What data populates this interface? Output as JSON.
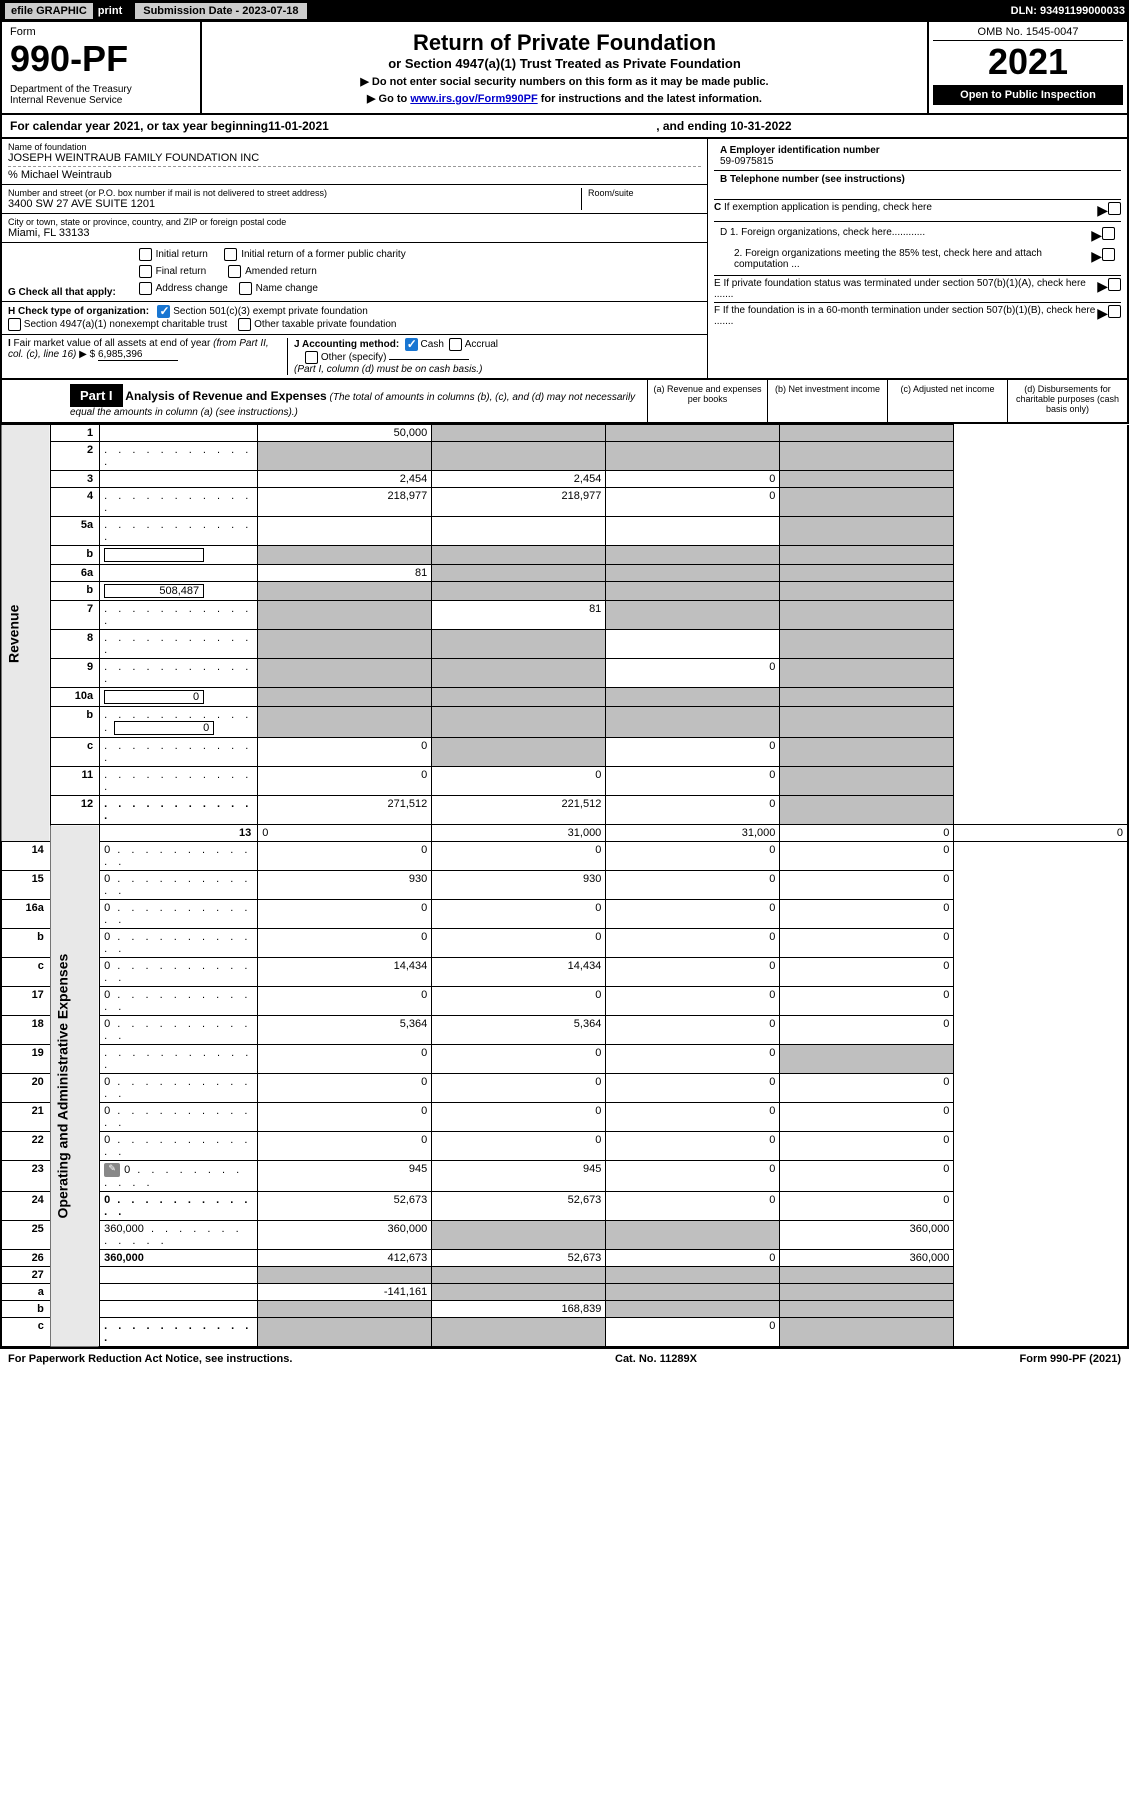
{
  "topbar": {
    "efile": "efile GRAPHIC",
    "print": "print",
    "subdate_label": "Submission Date - 2023-07-18",
    "dln": "DLN: 93491199000033"
  },
  "header": {
    "form": "Form",
    "formno": "990-PF",
    "dept": "Department of the Treasury\nInternal Revenue Service",
    "title": "Return of Private Foundation",
    "subtitle": "or Section 4947(a)(1) Trust Treated as Private Foundation",
    "note1": "▶ Do not enter social security numbers on this form as it may be made public.",
    "note2_pre": "▶ Go to ",
    "note2_link": "www.irs.gov/Form990PF",
    "note2_post": " for instructions and the latest information.",
    "omb": "OMB No. 1545-0047",
    "year": "2021",
    "open": "Open to Public Inspection"
  },
  "cal": {
    "pre": "For calendar year 2021, or tax year beginning ",
    "begin": "11-01-2021",
    "mid": ", and ending ",
    "end": "10-31-2022"
  },
  "info": {
    "name_label": "Name of foundation",
    "name": "JOSEPH WEINTRAUB FAMILY FOUNDATION INC",
    "care": "% Michael Weintraub",
    "addr_label": "Number and street (or P.O. box number if mail is not delivered to street address)",
    "addr": "3400 SW 27 AVE SUITE 1201",
    "room_label": "Room/suite",
    "city_label": "City or town, state or province, country, and ZIP or foreign postal code",
    "city": "Miami, FL  33133",
    "ein_label": "A Employer identification number",
    "ein": "59-0975815",
    "tel_label": "B Telephone number (see instructions)",
    "c_label": "C If exemption application is pending, check here",
    "d1": "D 1. Foreign organizations, check here............",
    "d2": "2. Foreign organizations meeting the 85% test, check here and attach computation ...",
    "e": "E  If private foundation status was terminated under section 507(b)(1)(A), check here .......",
    "f": "F  If the foundation is in a 60-month termination under section 507(b)(1)(B), check here .......",
    "g_label": "G Check all that apply:",
    "g_opts": [
      "Initial return",
      "Initial return of a former public charity",
      "Final return",
      "Amended return",
      "Address change",
      "Name change"
    ],
    "h_label": "H Check type of organization:",
    "h_opts": [
      "Section 501(c)(3) exempt private foundation",
      "Section 4947(a)(1) nonexempt charitable trust",
      "Other taxable private foundation"
    ],
    "i_label": "I Fair market value of all assets at end of year (from Part II, col. (c), line 16) ▶ $",
    "i_val": "6,985,396",
    "j_label": "J Accounting method:",
    "j_opts": [
      "Cash",
      "Accrual",
      "Other (specify)"
    ],
    "j_note": "(Part I, column (d) must be on cash basis.)"
  },
  "part1": {
    "hdr": "Part I",
    "title": "Analysis of Revenue and Expenses",
    "title_note": "(The total of amounts in columns (b), (c), and (d) may not necessarily equal the amounts in column (a) (see instructions).)",
    "cols": {
      "a": "(a) Revenue and expenses per books",
      "b": "(b) Net investment income",
      "c": "(c) Adjusted net income",
      "d": "(d) Disbursements for charitable purposes (cash basis only)"
    }
  },
  "sides": {
    "rev": "Revenue",
    "exp": "Operating and Administrative Expenses"
  },
  "rows": [
    {
      "n": "1",
      "d": "",
      "a": "50,000",
      "b": "",
      "c": "",
      "bg": true,
      "cg": true,
      "dg": true
    },
    {
      "n": "2",
      "d": "",
      "a": "",
      "b": "",
      "c": "",
      "ag": true,
      "bg": true,
      "cg": true,
      "dg": true,
      "dots": true
    },
    {
      "n": "3",
      "d": "",
      "a": "2,454",
      "b": "2,454",
      "c": "0",
      "dg": true
    },
    {
      "n": "4",
      "d": "",
      "a": "218,977",
      "b": "218,977",
      "c": "0",
      "dg": true,
      "dots": true
    },
    {
      "n": "5a",
      "d": "",
      "a": "",
      "b": "",
      "c": "",
      "dg": true,
      "dots": true
    },
    {
      "n": "b",
      "d": "",
      "a": "",
      "b": "",
      "c": "",
      "ag": true,
      "bg": true,
      "cg": true,
      "dg": true,
      "inline": true
    },
    {
      "n": "6a",
      "d": "",
      "a": "81",
      "b": "",
      "c": "",
      "bg": true,
      "cg": true,
      "dg": true
    },
    {
      "n": "b",
      "d": "",
      "a": "",
      "b": "",
      "c": "",
      "ag": true,
      "bg": true,
      "cg": true,
      "dg": true,
      "inline": true,
      "inlineval": "508,487"
    },
    {
      "n": "7",
      "d": "",
      "a": "",
      "b": "81",
      "c": "",
      "ag": true,
      "cg": true,
      "dg": true,
      "dots": true
    },
    {
      "n": "8",
      "d": "",
      "a": "",
      "b": "",
      "c": "",
      "ag": true,
      "bg": true,
      "dg": true,
      "dots": true
    },
    {
      "n": "9",
      "d": "",
      "a": "",
      "b": "",
      "c": "0",
      "ag": true,
      "bg": true,
      "dg": true,
      "dots": true
    },
    {
      "n": "10a",
      "d": "",
      "a": "",
      "b": "",
      "c": "",
      "ag": true,
      "bg": true,
      "cg": true,
      "dg": true,
      "inline": true,
      "inlineval": "0"
    },
    {
      "n": "b",
      "d": "",
      "a": "",
      "b": "",
      "c": "",
      "ag": true,
      "bg": true,
      "cg": true,
      "dg": true,
      "inline": true,
      "inlineval": "0",
      "dots": true
    },
    {
      "n": "c",
      "d": "",
      "a": "0",
      "b": "",
      "c": "0",
      "bg": true,
      "dg": true,
      "dots": true
    },
    {
      "n": "11",
      "d": "",
      "a": "0",
      "b": "0",
      "c": "0",
      "dg": true,
      "dots": true
    },
    {
      "n": "12",
      "d": "",
      "a": "271,512",
      "b": "221,512",
      "c": "0",
      "dg": true,
      "bold": true,
      "dots": true
    },
    {
      "n": "13",
      "d": "0",
      "a": "31,000",
      "b": "31,000",
      "c": "0"
    },
    {
      "n": "14",
      "d": "0",
      "a": "0",
      "b": "0",
      "c": "0",
      "dots": true
    },
    {
      "n": "15",
      "d": "0",
      "a": "930",
      "b": "930",
      "c": "0",
      "dots": true
    },
    {
      "n": "16a",
      "d": "0",
      "a": "0",
      "b": "0",
      "c": "0",
      "dots": true
    },
    {
      "n": "b",
      "d": "0",
      "a": "0",
      "b": "0",
      "c": "0",
      "dots": true
    },
    {
      "n": "c",
      "d": "0",
      "a": "14,434",
      "b": "14,434",
      "c": "0",
      "dots": true
    },
    {
      "n": "17",
      "d": "0",
      "a": "0",
      "b": "0",
      "c": "0",
      "dots": true
    },
    {
      "n": "18",
      "d": "0",
      "a": "5,364",
      "b": "5,364",
      "c": "0",
      "dots": true
    },
    {
      "n": "19",
      "d": "",
      "a": "0",
      "b": "0",
      "c": "0",
      "dg": true,
      "dots": true
    },
    {
      "n": "20",
      "d": "0",
      "a": "0",
      "b": "0",
      "c": "0",
      "dots": true
    },
    {
      "n": "21",
      "d": "0",
      "a": "0",
      "b": "0",
      "c": "0",
      "dots": true
    },
    {
      "n": "22",
      "d": "0",
      "a": "0",
      "b": "0",
      "c": "0",
      "dots": true
    },
    {
      "n": "23",
      "d": "0",
      "a": "945",
      "b": "945",
      "c": "0",
      "dots": true,
      "pencil": true
    },
    {
      "n": "24",
      "d": "0",
      "a": "52,673",
      "b": "52,673",
      "c": "0",
      "bold": true,
      "dots": true
    },
    {
      "n": "25",
      "d": "360,000",
      "a": "360,000",
      "b": "",
      "c": "",
      "bg": true,
      "cg": true,
      "dots": true
    },
    {
      "n": "26",
      "d": "360,000",
      "a": "412,673",
      "b": "52,673",
      "c": "0",
      "bold": true
    },
    {
      "n": "27",
      "d": "",
      "a": "",
      "b": "",
      "c": "",
      "ag": true,
      "bg": true,
      "cg": true,
      "dg": true
    },
    {
      "n": "a",
      "d": "",
      "a": "-141,161",
      "b": "",
      "c": "",
      "bg": true,
      "cg": true,
      "dg": true,
      "bold": true
    },
    {
      "n": "b",
      "d": "",
      "a": "",
      "b": "168,839",
      "c": "",
      "ag": true,
      "cg": true,
      "dg": true,
      "bold": true
    },
    {
      "n": "c",
      "d": "",
      "a": "",
      "b": "",
      "c": "0",
      "ag": true,
      "bg": true,
      "dg": true,
      "bold": true,
      "dots": true
    }
  ],
  "footer": {
    "left": "For Paperwork Reduction Act Notice, see instructions.",
    "mid": "Cat. No. 11289X",
    "right": "Form 990-PF (2021)"
  }
}
